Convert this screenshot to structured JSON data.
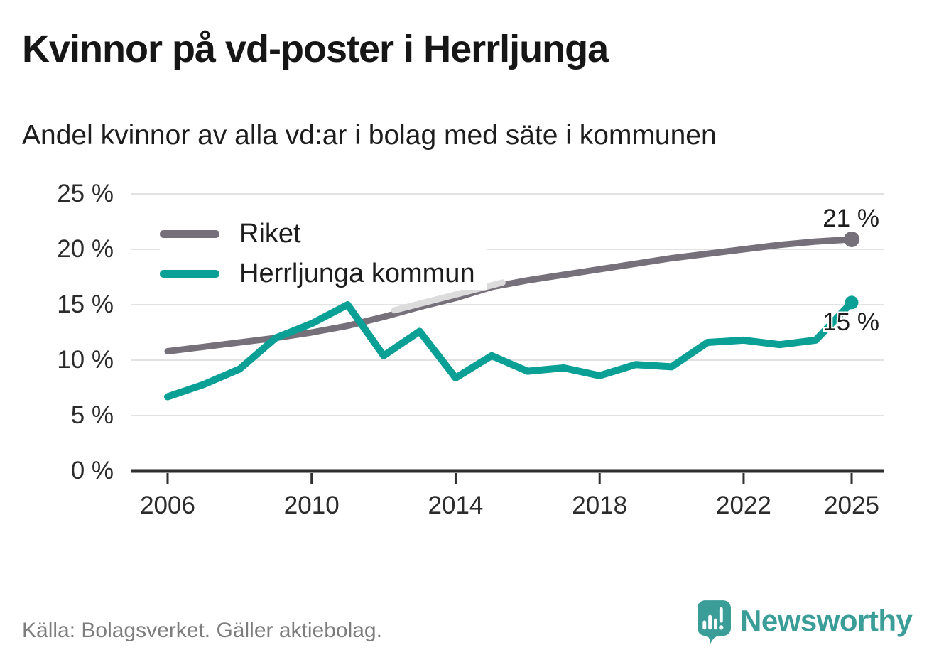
{
  "header": {
    "title": "Kvinnor på vd-poster i Herrljunga",
    "subtitle": "Andel kvinnor av alla vd:ar i bolag med säte i kommunen"
  },
  "chart_data": {
    "type": "line",
    "x": [
      2006,
      2007,
      2008,
      2009,
      2010,
      2011,
      2012,
      2013,
      2014,
      2015,
      2016,
      2017,
      2018,
      2019,
      2020,
      2021,
      2022,
      2023,
      2024,
      2025
    ],
    "series": [
      {
        "name": "Riket",
        "color": "#75707A",
        "end_label": "21 %",
        "end_value": 20.9,
        "values": [
          10.8,
          11.2,
          11.6,
          12.0,
          12.5,
          13.1,
          13.9,
          14.8,
          15.6,
          16.6,
          17.2,
          17.7,
          18.2,
          18.7,
          19.2,
          19.6,
          20.0,
          20.4,
          20.7,
          20.9
        ]
      },
      {
        "name": "Herrljunga kommun",
        "color": "#0AA096",
        "end_label": "15 %",
        "end_value": 15.2,
        "values": [
          6.7,
          7.8,
          9.2,
          12.0,
          13.3,
          15.0,
          10.4,
          12.6,
          8.4,
          10.4,
          9.0,
          9.3,
          8.6,
          9.6,
          9.4,
          11.6,
          11.8,
          11.4,
          11.8,
          15.2
        ]
      }
    ],
    "light_overlay_segment": {
      "x": [
        2012.3,
        2015.3
      ],
      "values": [
        14.5,
        17.0
      ],
      "color": "#DCDCDC"
    },
    "x_ticks": [
      2006,
      2010,
      2014,
      2018,
      2022,
      2025
    ],
    "y_ticks": [
      25,
      20,
      15,
      10,
      5,
      0
    ],
    "y_tick_suffix": " %",
    "ylim": [
      0,
      25
    ],
    "xlim": [
      2006,
      2025
    ],
    "grid": "horizontal",
    "legend_position": "top-left-inside"
  },
  "footer": {
    "source": "Källa: Bolagsverket. Gäller aktiebolag.",
    "brand": "Newsworthy"
  },
  "colors": {
    "riket_line": "#75707A",
    "herrljunga_line": "#0AA096",
    "light_segment": "#DCDCDC",
    "gridline": "#E2E2E2",
    "axis": "#2E2E2E",
    "text": "#1D1D1D",
    "source_text": "#7D7D7D",
    "brand_teal": "#3A9D98",
    "background": "#FFFFFF"
  }
}
